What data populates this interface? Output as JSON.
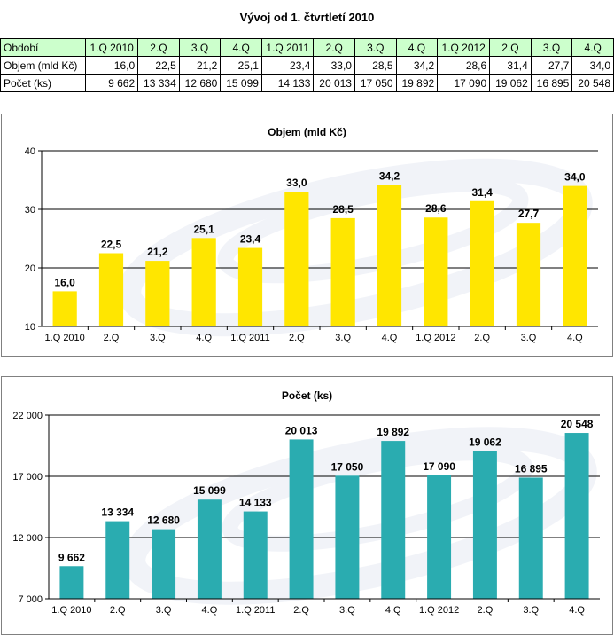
{
  "page_title": "Vývoj od 1. čtvrtletí 2010",
  "table": {
    "columns": [
      "Období",
      "1.Q 2010",
      "2.Q",
      "3.Q",
      "4.Q",
      "1.Q 2011",
      "2.Q",
      "3.Q",
      "4.Q",
      "1.Q 2012",
      "2.Q",
      "3.Q",
      "4.Q"
    ],
    "rows": [
      {
        "label": "Objem (mld Kč)",
        "values": [
          "16,0",
          "22,5",
          "21,2",
          "25,1",
          "23,4",
          "33,0",
          "28,5",
          "34,2",
          "28,6",
          "31,4",
          "27,7",
          "34,0"
        ]
      },
      {
        "label": "Počet (ks)",
        "values": [
          "9 662",
          "13 334",
          "12 680",
          "15 099",
          "14 133",
          "20 013",
          "17 050",
          "19 892",
          "17 090",
          "19 062",
          "16 895",
          "20 548"
        ]
      }
    ]
  },
  "chart_data": [
    {
      "type": "bar",
      "title": "Objem (mld Kč)",
      "categories": [
        "1.Q 2010",
        "2.Q",
        "3.Q",
        "4.Q",
        "1.Q 2011",
        "2.Q",
        "3.Q",
        "4.Q",
        "1.Q 2012",
        "2.Q",
        "3.Q",
        "4.Q"
      ],
      "values": [
        16.0,
        22.5,
        21.2,
        25.1,
        23.4,
        33.0,
        28.5,
        34.2,
        28.6,
        31.4,
        27.7,
        34.0
      ],
      "labels": [
        "16,0",
        "22,5",
        "21,2",
        "25,1",
        "23,4",
        "33,0",
        "28,5",
        "34,2",
        "28,6",
        "31,4",
        "27,7",
        "34,0"
      ],
      "ylim": [
        10,
        40
      ],
      "yticks": [
        10,
        20,
        30,
        40
      ],
      "ytick_labels": [
        "10",
        "20",
        "30",
        "40"
      ],
      "grid": true,
      "color": "#ffe600"
    },
    {
      "type": "bar",
      "title": "Počet (ks)",
      "categories": [
        "1.Q 2010",
        "2.Q",
        "3.Q",
        "4.Q",
        "1.Q 2011",
        "2.Q",
        "3.Q",
        "4.Q",
        "1.Q 2012",
        "2.Q",
        "3.Q",
        "4.Q"
      ],
      "values": [
        9662,
        13334,
        12680,
        15099,
        14133,
        20013,
        17050,
        19892,
        17090,
        19062,
        16895,
        20548
      ],
      "labels": [
        "9 662",
        "13 334",
        "12 680",
        "15 099",
        "14 133",
        "20 013",
        "17 050",
        "19 892",
        "17 090",
        "19 062",
        "16 895",
        "20 548"
      ],
      "ylim": [
        7000,
        22000
      ],
      "yticks": [
        7000,
        12000,
        17000,
        22000
      ],
      "ytick_labels": [
        "7 000",
        "12 000",
        "17 000",
        "22 000"
      ],
      "grid": true,
      "color": "#2aacb0"
    }
  ]
}
